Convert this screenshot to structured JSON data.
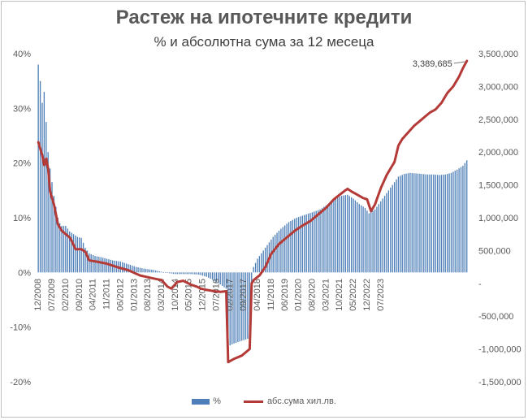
{
  "chart_data": {
    "type": "bar+line",
    "title": "Растеж на ипотечните кредити",
    "subtitle": "% и абсолютна сума за 12 месеца",
    "legend": {
      "placement": "bottom"
    },
    "grid": false,
    "left_axis": {
      "ylim": [
        -20,
        40
      ],
      "ticks": [
        -20,
        -10,
        0,
        10,
        20,
        30,
        40
      ],
      "tick_labels": [
        "-20%",
        "-10%",
        "0%",
        "10%",
        "20%",
        "30%",
        "40%"
      ]
    },
    "right_axis": {
      "ylim": [
        -1500000,
        3500000
      ],
      "ticks": [
        -1500000,
        -1000000,
        -500000,
        0,
        500000,
        1000000,
        1500000,
        2000000,
        2500000,
        3000000,
        3500000
      ],
      "tick_labels": [
        "-1,500,000",
        "-1,000,000",
        "-500,000",
        "-",
        "500,000",
        "1,000,000",
        "1,500,000",
        "2,000,000",
        "2,500,000",
        "3,000,000",
        "3,500,000"
      ]
    },
    "x_tick_labels": [
      "12/2008",
      "07/2009",
      "02/2010",
      "09/2010",
      "04/2011",
      "11/2011",
      "06/2012",
      "01/2013",
      "08/2013",
      "03/2014",
      "10/2014",
      "05/2015",
      "12/2015",
      "07/2016",
      "02/2017",
      "09/2017",
      "04/2018",
      "11/2018",
      "06/2019",
      "01/2020",
      "08/2020",
      "03/2021",
      "10/2021",
      "05/2022",
      "12/2022",
      "07/2023"
    ],
    "series": [
      {
        "name": "%",
        "type": "bar",
        "axis": "left",
        "color": "#4e7fb8",
        "anchors": [
          [
            0,
            38
          ],
          [
            1,
            35
          ],
          [
            2,
            31
          ],
          [
            3,
            33
          ],
          [
            4,
            27.5
          ],
          [
            5,
            22
          ],
          [
            6,
            19
          ],
          [
            7,
            16.5
          ],
          [
            8,
            14
          ],
          [
            9,
            12
          ],
          [
            10,
            10
          ],
          [
            11,
            9
          ],
          [
            12,
            8.5
          ],
          [
            14,
            8.5
          ],
          [
            16,
            7.5
          ],
          [
            18,
            7
          ],
          [
            20,
            6.5
          ],
          [
            22,
            6.3
          ],
          [
            24,
            4.5
          ],
          [
            26,
            3.5
          ],
          [
            29,
            3
          ],
          [
            32,
            2.8
          ],
          [
            35,
            2.5
          ],
          [
            38,
            2.2
          ],
          [
            42,
            2
          ],
          [
            46,
            1.5
          ],
          [
            50,
            1
          ],
          [
            54,
            0.7
          ],
          [
            58,
            0.5
          ],
          [
            62,
            0.2
          ],
          [
            66,
            -0.1
          ],
          [
            70,
            -0.3
          ],
          [
            74,
            -0.3
          ],
          [
            78,
            -0.3
          ],
          [
            82,
            -0.4
          ],
          [
            86,
            -0.8
          ],
          [
            90,
            -1.5
          ],
          [
            93,
            -2.2
          ],
          [
            96,
            -3
          ],
          [
            97,
            -13.5
          ],
          [
            100,
            -13
          ],
          [
            104,
            -12.5
          ],
          [
            108,
            -12
          ],
          [
            109,
            -2
          ],
          [
            110,
            1
          ],
          [
            112,
            2.5
          ],
          [
            114,
            3.5
          ],
          [
            117,
            5
          ],
          [
            120,
            6.5
          ],
          [
            124,
            8
          ],
          [
            128,
            9.2
          ],
          [
            132,
            10
          ],
          [
            136,
            10.5
          ],
          [
            140,
            11
          ],
          [
            144,
            11.5
          ],
          [
            148,
            12.5
          ],
          [
            152,
            13.5
          ],
          [
            155,
            14
          ],
          [
            158,
            14.2
          ],
          [
            161,
            13.5
          ],
          [
            164,
            12.5
          ],
          [
            167,
            11.8
          ],
          [
            169,
            10.8
          ],
          [
            172,
            11.5
          ],
          [
            175,
            13
          ],
          [
            178,
            14.5
          ],
          [
            181,
            16
          ],
          [
            184,
            17.5
          ],
          [
            187,
            18
          ],
          [
            190,
            18.2
          ],
          [
            193,
            18.1
          ],
          [
            196,
            18
          ],
          [
            199,
            17.9
          ],
          [
            202,
            17.9
          ],
          [
            205,
            17.8
          ],
          [
            208,
            17.9
          ],
          [
            211,
            18.2
          ],
          [
            214,
            18.8
          ],
          [
            217,
            19.5
          ],
          [
            219,
            20.5
          ]
        ]
      },
      {
        "name": "абс.сума хил.лв.",
        "type": "line",
        "axis": "right",
        "color": "#b43a37",
        "anchors": [
          [
            0,
            2150000
          ],
          [
            2,
            1950000
          ],
          [
            3,
            1800000
          ],
          [
            4,
            1900000
          ],
          [
            5,
            1750000
          ],
          [
            6,
            1400000
          ],
          [
            8,
            1200000
          ],
          [
            10,
            900000
          ],
          [
            12,
            800000
          ],
          [
            14,
            750000
          ],
          [
            16,
            700000
          ],
          [
            17,
            650000
          ],
          [
            19,
            520000
          ],
          [
            22,
            520000
          ],
          [
            24,
            480000
          ],
          [
            26,
            350000
          ],
          [
            30,
            330000
          ],
          [
            35,
            300000
          ],
          [
            40,
            250000
          ],
          [
            46,
            200000
          ],
          [
            52,
            120000
          ],
          [
            58,
            80000
          ],
          [
            63,
            50000
          ],
          [
            66,
            -50000
          ],
          [
            68,
            -80000
          ],
          [
            71,
            20000
          ],
          [
            74,
            40000
          ],
          [
            76,
            10000
          ],
          [
            78,
            -20000
          ],
          [
            81,
            -50000
          ],
          [
            83,
            -80000
          ],
          [
            86,
            -100000
          ],
          [
            90,
            -120000
          ],
          [
            93,
            -130000
          ],
          [
            96,
            -120000
          ],
          [
            97,
            -1200000
          ],
          [
            100,
            -1150000
          ],
          [
            104,
            -1100000
          ],
          [
            108,
            -1000000
          ],
          [
            109,
            0
          ],
          [
            110,
            50000
          ],
          [
            113,
            120000
          ],
          [
            116,
            250000
          ],
          [
            119,
            450000
          ],
          [
            123,
            600000
          ],
          [
            127,
            700000
          ],
          [
            131,
            800000
          ],
          [
            135,
            880000
          ],
          [
            139,
            950000
          ],
          [
            143,
            1050000
          ],
          [
            147,
            1150000
          ],
          [
            151,
            1280000
          ],
          [
            154,
            1350000
          ],
          [
            157,
            1420000
          ],
          [
            158,
            1440000
          ],
          [
            160,
            1400000
          ],
          [
            163,
            1350000
          ],
          [
            166,
            1300000
          ],
          [
            168,
            1280000
          ],
          [
            170,
            1100000
          ],
          [
            172,
            1200000
          ],
          [
            175,
            1450000
          ],
          [
            178,
            1650000
          ],
          [
            180,
            1750000
          ],
          [
            182,
            1850000
          ],
          [
            184,
            2100000
          ],
          [
            186,
            2200000
          ],
          [
            189,
            2300000
          ],
          [
            192,
            2400000
          ],
          [
            196,
            2500000
          ],
          [
            200,
            2600000
          ],
          [
            203,
            2650000
          ],
          [
            206,
            2750000
          ],
          [
            209,
            2900000
          ],
          [
            212,
            3000000
          ],
          [
            215,
            3150000
          ],
          [
            217,
            3280000
          ],
          [
            219,
            3389685
          ]
        ]
      }
    ],
    "annotation": {
      "text": "3,389,685",
      "series": "абс.сума хил.лв.",
      "at": "last point"
    }
  }
}
